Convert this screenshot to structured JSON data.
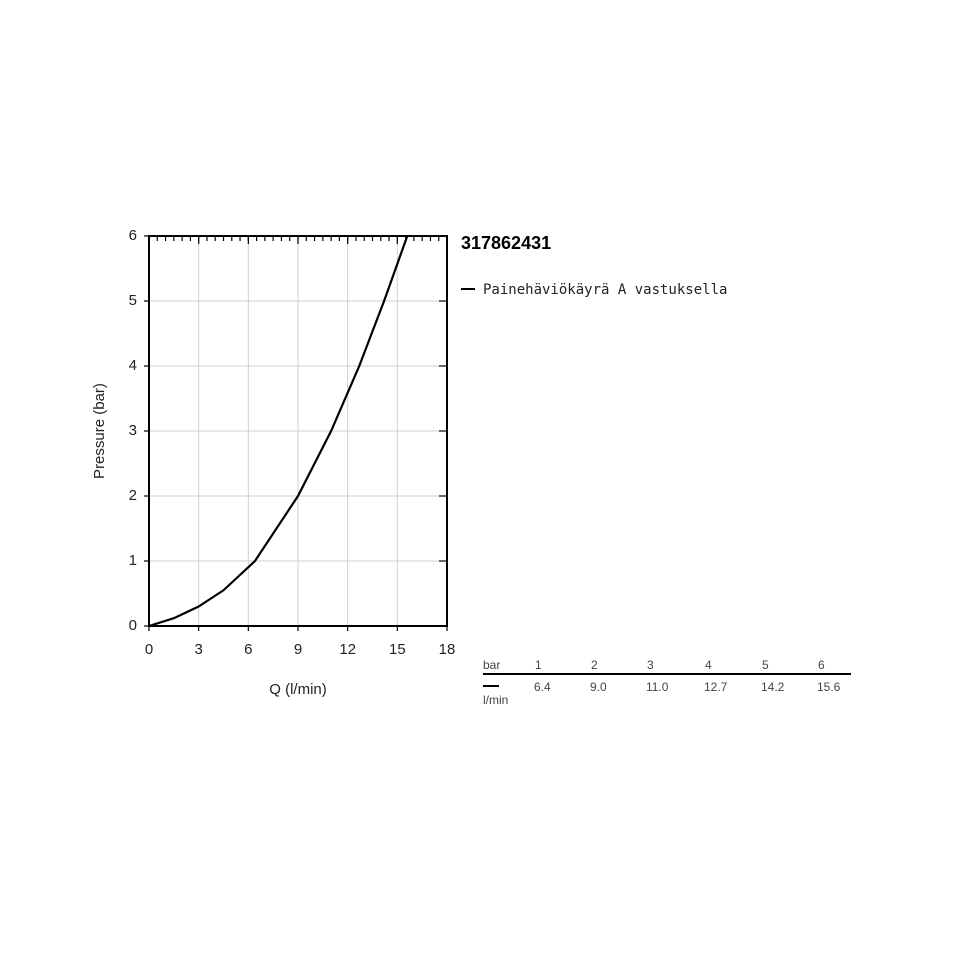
{
  "chart_data": {
    "type": "line",
    "title": "317862431",
    "xlabel": "Q (l/min)",
    "ylabel": "Pressure (bar)",
    "x": [
      0,
      1.5,
      3,
      4.5,
      6.4,
      9.0,
      11.0,
      12.7,
      14.2,
      15.6
    ],
    "series": [
      {
        "name": "Painehäviökäyrä A vastuksella",
        "color": "#000000",
        "values": [
          0,
          0.12,
          0.3,
          0.55,
          1,
          2,
          3,
          4,
          5,
          6
        ]
      }
    ],
    "xlim": [
      0,
      18
    ],
    "ylim": [
      0,
      6
    ],
    "xticks": [
      0,
      3,
      6,
      9,
      12,
      15,
      18
    ],
    "yticks": [
      0,
      1,
      2,
      3,
      4,
      5,
      6
    ],
    "grid": true
  },
  "table": {
    "header": [
      "bar",
      "1",
      "2",
      "3",
      "4",
      "5",
      "6"
    ],
    "unit": "l/min",
    "values": [
      "6.4",
      "9.0",
      "11.0",
      "12.7",
      "14.2",
      "15.6"
    ]
  }
}
